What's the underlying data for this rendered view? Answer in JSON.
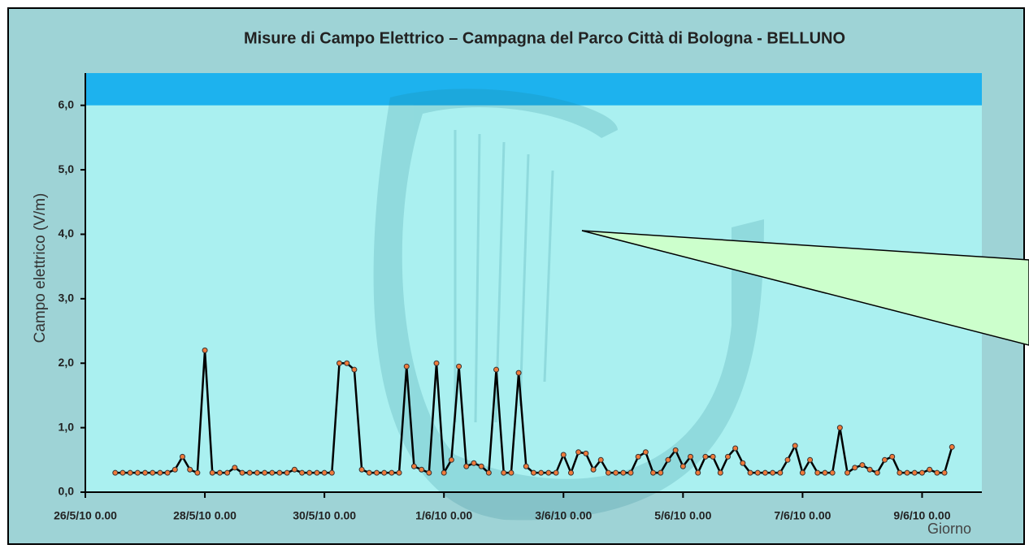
{
  "chart_data": {
    "type": "line",
    "title": "Misure di Campo Elettrico – Campagna del Parco Città di Bologna - BELLUNO",
    "y_label": "Campo elettrico (V/m)",
    "x_label": "Giorno",
    "ylim": [
      0,
      6.5
    ],
    "yticks": [
      {
        "value": 0,
        "label": "0,0"
      },
      {
        "value": 1,
        "label": "1,0"
      },
      {
        "value": 2,
        "label": "2,0"
      },
      {
        "value": 3,
        "label": "3,0"
      },
      {
        "value": 4,
        "label": "4,0"
      },
      {
        "value": 5,
        "label": "5,0"
      },
      {
        "value": 6,
        "label": "6,0"
      }
    ],
    "xlim": [
      "2010-05-26T00:00",
      "2010-06-10T00:00"
    ],
    "xticks": [
      {
        "value": "2010-05-26T00:00",
        "label": "26/5/10 0.00"
      },
      {
        "value": "2010-05-28T00:00",
        "label": "28/5/10 0.00"
      },
      {
        "value": "2010-05-30T00:00",
        "label": "30/5/10 0.00"
      },
      {
        "value": "2010-06-01T00:00",
        "label": "1/6/10 0.00"
      },
      {
        "value": "2010-06-03T00:00",
        "label": "3/6/10 0.00"
      },
      {
        "value": "2010-06-05T00:00",
        "label": "5/6/10 0.00"
      },
      {
        "value": "2010-06-07T00:00",
        "label": "7/6/10 0.00"
      },
      {
        "value": "2010-06-09T00:00",
        "label": "9/6/10 0.00"
      }
    ],
    "band": {
      "from": 6,
      "to": 6.5,
      "color": "#1db2ee"
    },
    "line_color": "#000000",
    "marker_color": "#f07a3a",
    "x": [
      "2010-05-26T12:00",
      "2010-05-26T15:00",
      "2010-05-26T18:00",
      "2010-05-26T21:00",
      "2010-05-27T00:00",
      "2010-05-27T03:00",
      "2010-05-27T06:00",
      "2010-05-27T09:00",
      "2010-05-27T12:00",
      "2010-05-27T15:00",
      "2010-05-27T18:00",
      "2010-05-27T21:00",
      "2010-05-28T00:00",
      "2010-05-28T03:00",
      "2010-05-28T06:00",
      "2010-05-28T09:00",
      "2010-05-28T12:00",
      "2010-05-28T15:00",
      "2010-05-28T18:00",
      "2010-05-28T21:00",
      "2010-05-29T00:00",
      "2010-05-29T03:00",
      "2010-05-29T06:00",
      "2010-05-29T09:00",
      "2010-05-29T12:00",
      "2010-05-29T15:00",
      "2010-05-29T18:00",
      "2010-05-29T21:00",
      "2010-05-30T00:00",
      "2010-05-30T03:00",
      "2010-05-30T06:00",
      "2010-05-30T09:00",
      "2010-05-30T12:00",
      "2010-05-30T15:00",
      "2010-05-30T18:00",
      "2010-05-30T21:00",
      "2010-05-31T00:00",
      "2010-05-31T03:00",
      "2010-05-31T06:00",
      "2010-05-31T09:00",
      "2010-05-31T12:00",
      "2010-05-31T15:00",
      "2010-05-31T18:00",
      "2010-05-31T21:00",
      "2010-06-01T00:00",
      "2010-06-01T03:00",
      "2010-06-01T06:00",
      "2010-06-01T09:00",
      "2010-06-01T12:00",
      "2010-06-01T15:00",
      "2010-06-01T18:00",
      "2010-06-01T21:00",
      "2010-06-02T00:00",
      "2010-06-02T03:00",
      "2010-06-02T06:00",
      "2010-06-02T09:00",
      "2010-06-02T12:00",
      "2010-06-02T15:00",
      "2010-06-02T18:00",
      "2010-06-02T21:00",
      "2010-06-03T00:00",
      "2010-06-03T03:00",
      "2010-06-03T06:00",
      "2010-06-03T09:00",
      "2010-06-03T12:00",
      "2010-06-03T15:00",
      "2010-06-03T18:00",
      "2010-06-03T21:00",
      "2010-06-04T00:00",
      "2010-06-04T03:00",
      "2010-06-04T06:00",
      "2010-06-04T09:00",
      "2010-06-04T12:00",
      "2010-06-04T15:00",
      "2010-06-04T18:00",
      "2010-06-04T21:00",
      "2010-06-05T00:00",
      "2010-06-05T03:00",
      "2010-06-05T06:00",
      "2010-06-05T09:00",
      "2010-06-05T12:00",
      "2010-06-05T15:00",
      "2010-06-05T18:00",
      "2010-06-05T21:00",
      "2010-06-06T00:00",
      "2010-06-06T03:00",
      "2010-06-06T06:00",
      "2010-06-06T09:00",
      "2010-06-06T12:00",
      "2010-06-06T15:00",
      "2010-06-06T18:00",
      "2010-06-06T21:00",
      "2010-06-07T00:00",
      "2010-06-07T03:00",
      "2010-06-07T06:00",
      "2010-06-07T09:00",
      "2010-06-07T12:00",
      "2010-06-07T15:00",
      "2010-06-07T18:00",
      "2010-06-07T21:00",
      "2010-06-08T00:00",
      "2010-06-08T03:00",
      "2010-06-08T06:00",
      "2010-06-08T09:00",
      "2010-06-08T12:00",
      "2010-06-08T15:00",
      "2010-06-08T18:00",
      "2010-06-08T21:00",
      "2010-06-09T00:00",
      "2010-06-09T03:00",
      "2010-06-09T06:00",
      "2010-06-09T09:00",
      "2010-06-09T12:00"
    ],
    "values": [
      0.3,
      0.3,
      0.3,
      0.3,
      0.3,
      0.3,
      0.3,
      0.3,
      0.35,
      0.55,
      0.35,
      0.3,
      2.2,
      0.3,
      0.3,
      0.3,
      0.38,
      0.3,
      0.3,
      0.3,
      0.3,
      0.3,
      0.3,
      0.3,
      0.35,
      0.3,
      0.3,
      0.3,
      0.3,
      0.3,
      2.0,
      2.0,
      1.9,
      0.35,
      0.3,
      0.3,
      0.3,
      0.3,
      0.3,
      1.95,
      0.4,
      0.35,
      0.3,
      2.0,
      0.3,
      0.5,
      1.95,
      0.4,
      0.45,
      0.4,
      0.3,
      1.9,
      0.3,
      0.3,
      1.85,
      0.4,
      0.3,
      0.3,
      0.3,
      0.3,
      0.58,
      0.3,
      0.62,
      0.6,
      0.35,
      0.5,
      0.3,
      0.3,
      0.3,
      0.3,
      0.55,
      0.62,
      0.3,
      0.3,
      0.5,
      0.65,
      0.4,
      0.55,
      0.3,
      0.55,
      0.55,
      0.3,
      0.55,
      0.68,
      0.45,
      0.3,
      0.3,
      0.3,
      0.3,
      0.3,
      0.5,
      0.72,
      0.3,
      0.5,
      0.3,
      0.3,
      0.3,
      1.0,
      0.3,
      0.38,
      0.42,
      0.35,
      0.3,
      0.5,
      0.55,
      0.3,
      0.3,
      0.3,
      0.3,
      0.35,
      0.3,
      0.3,
      0.7
    ]
  }
}
